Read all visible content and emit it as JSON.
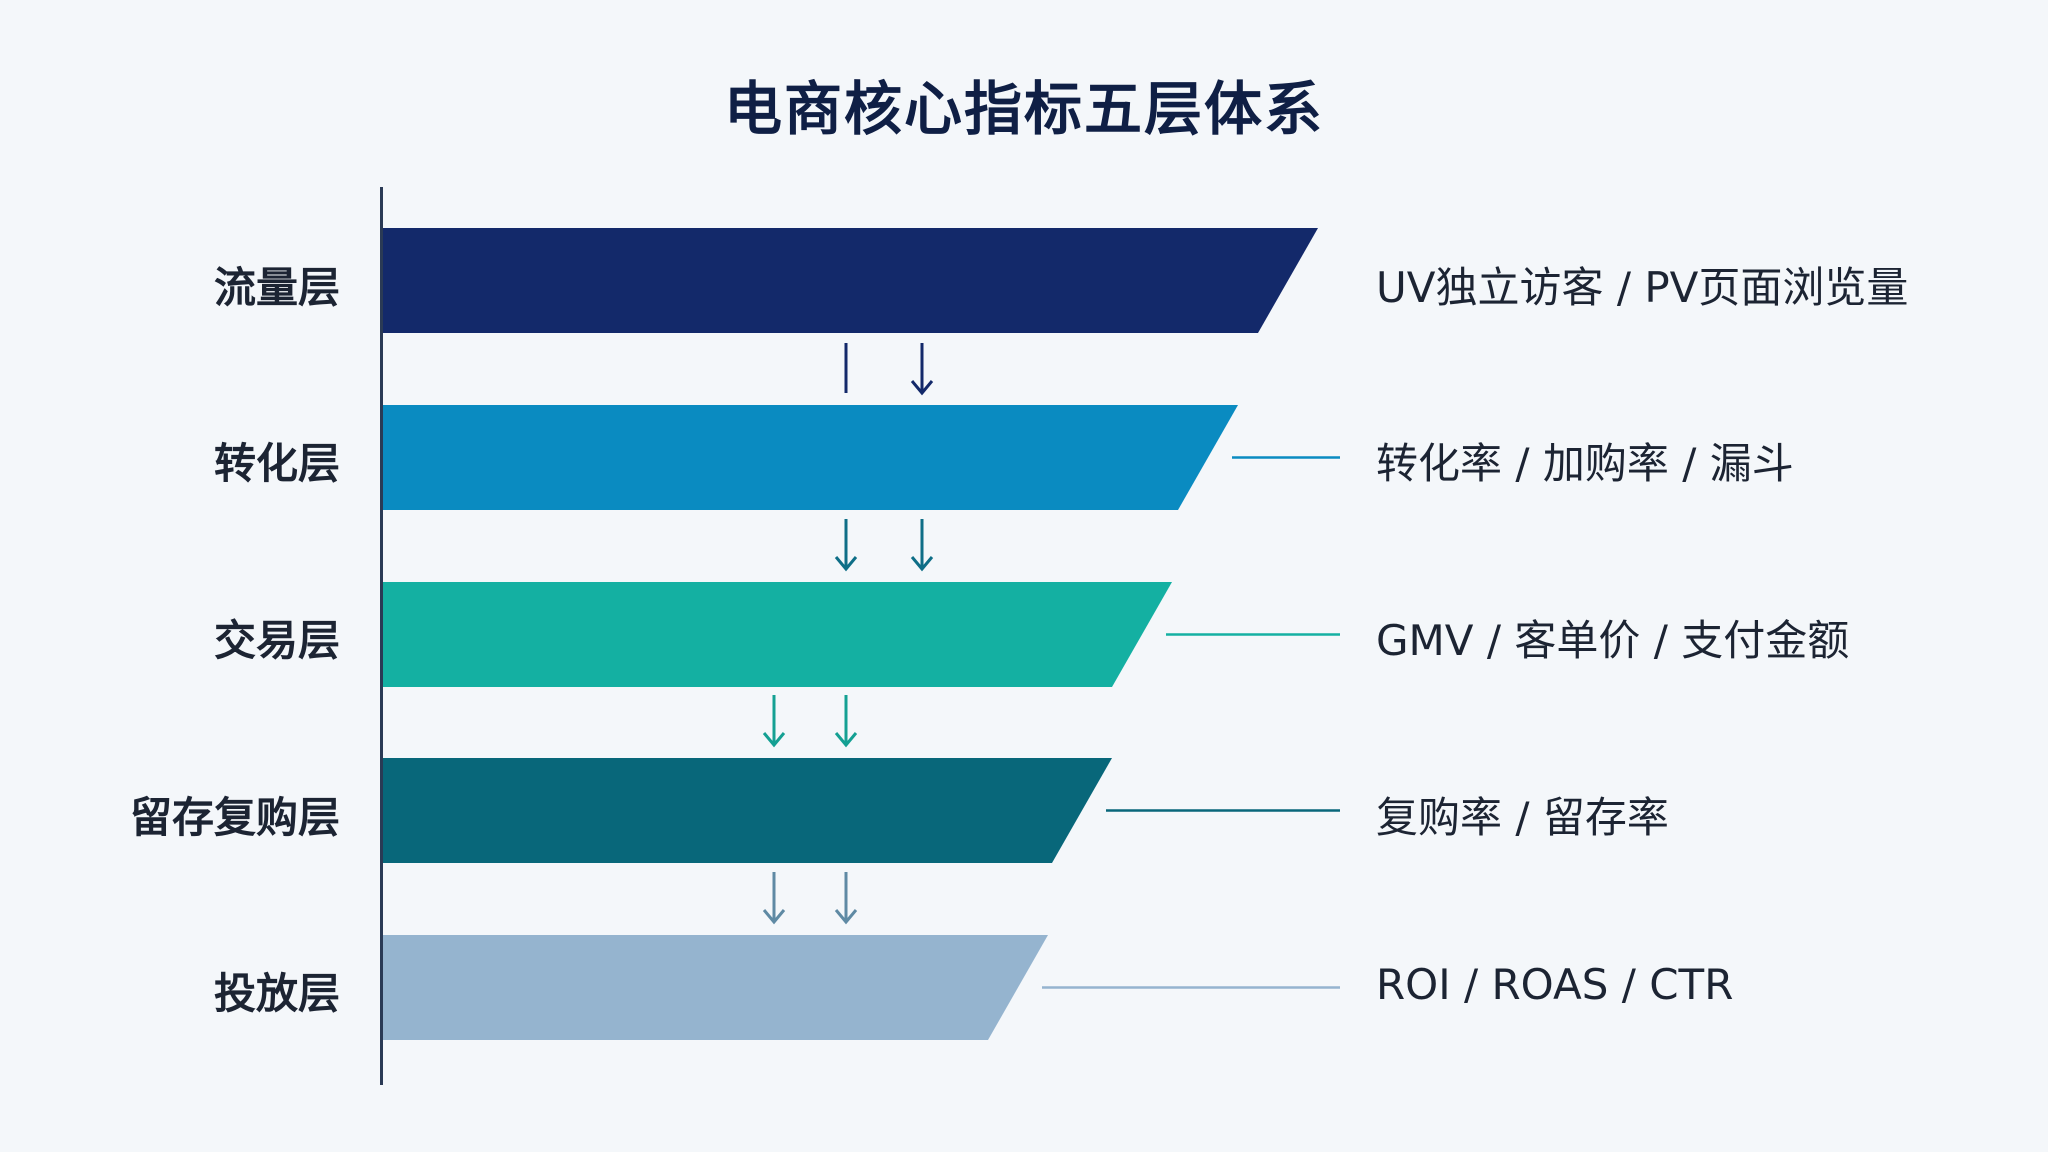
{
  "title": "电商核心指标五层体系",
  "layers": [
    {
      "label": "流量层",
      "metrics": "UV独立访客 / PV页面浏览量",
      "color": "#13296a"
    },
    {
      "label": "转化层",
      "metrics": "转化率 / 加购率 / 漏斗",
      "color": "#0a8bc1"
    },
    {
      "label": "交易层",
      "metrics": "GMV / 客单价 / 支付金额",
      "color": "#14b0a2"
    },
    {
      "label": "留存复购层",
      "metrics": "复购率 / 留存率",
      "color": "#08677a"
    },
    {
      "label": "投放层",
      "metrics": "ROI / ROAS / CTR",
      "color": "#95b4cf"
    }
  ],
  "arrow_colors": [
    "#13296a",
    "#0e6e87",
    "#14a093",
    "#5f8aa4"
  ]
}
